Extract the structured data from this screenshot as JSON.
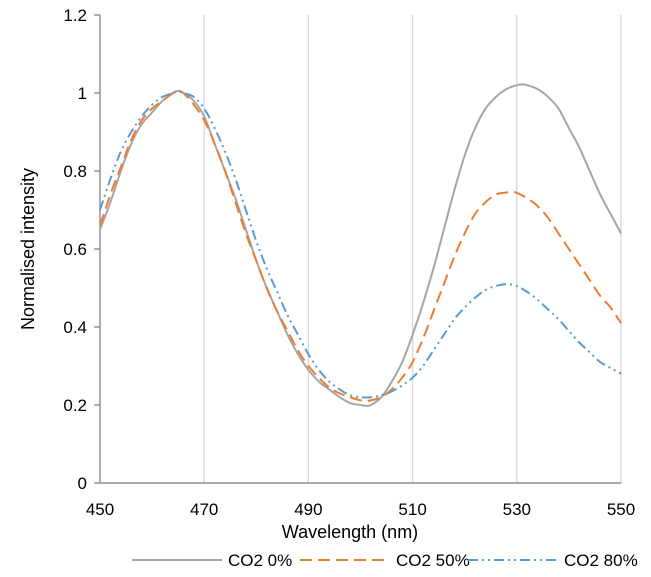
{
  "chart_data": {
    "type": "line",
    "title": "",
    "xlabel": "Wavelength (nm)",
    "ylabel": "Normalised intensity",
    "xlim": [
      450,
      550
    ],
    "ylim": [
      0,
      1.2
    ],
    "x_ticks": [
      "450",
      "470",
      "490",
      "510",
      "530",
      "550"
    ],
    "y_ticks": [
      "0",
      "0.2",
      "0.4",
      "0.6",
      "0.8",
      "1",
      "1.2"
    ],
    "grid": "vertical",
    "legend_position": "bottom",
    "series": [
      {
        "name": "CO2 0%",
        "color": "#a6a6a6",
        "dash": "solid",
        "x": [
          450,
          452,
          454,
          456,
          458,
          460,
          462,
          464,
          465,
          466,
          468,
          470,
          472,
          474,
          476,
          478,
          480,
          482,
          484,
          486,
          488,
          490,
          492,
          494,
          496,
          498,
          500,
          501,
          502,
          504,
          506,
          508,
          510,
          512,
          514,
          516,
          518,
          520,
          522,
          524,
          526,
          528,
          530,
          531,
          532,
          534,
          536,
          538,
          540,
          542,
          544,
          546,
          548,
          550
        ],
        "y": [
          0.65,
          0.72,
          0.8,
          0.87,
          0.92,
          0.95,
          0.98,
          1.0,
          1.005,
          1.0,
          0.98,
          0.94,
          0.87,
          0.8,
          0.73,
          0.65,
          0.57,
          0.5,
          0.44,
          0.38,
          0.33,
          0.29,
          0.26,
          0.24,
          0.22,
          0.205,
          0.2,
          0.198,
          0.2,
          0.22,
          0.26,
          0.31,
          0.38,
          0.46,
          0.55,
          0.65,
          0.75,
          0.84,
          0.91,
          0.96,
          0.99,
          1.01,
          1.02,
          1.022,
          1.02,
          1.01,
          0.99,
          0.96,
          0.91,
          0.86,
          0.8,
          0.74,
          0.69,
          0.64
        ]
      },
      {
        "name": "CO2 50%",
        "color": "#ed7d31",
        "dash": "long-dash",
        "x": [
          450,
          452,
          454,
          456,
          458,
          460,
          462,
          464,
          465,
          466,
          468,
          470,
          472,
          474,
          476,
          478,
          480,
          482,
          484,
          486,
          488,
          490,
          492,
          494,
          496,
          498,
          500,
          501,
          502,
          504,
          506,
          508,
          510,
          512,
          514,
          516,
          518,
          520,
          522,
          524,
          526,
          528,
          529,
          530,
          532,
          534,
          536,
          538,
          540,
          542,
          544,
          546,
          548,
          550
        ],
        "y": [
          0.66,
          0.74,
          0.81,
          0.88,
          0.93,
          0.96,
          0.98,
          1.0,
          1.005,
          1.0,
          0.97,
          0.93,
          0.87,
          0.8,
          0.72,
          0.64,
          0.57,
          0.5,
          0.44,
          0.39,
          0.34,
          0.3,
          0.27,
          0.245,
          0.23,
          0.22,
          0.212,
          0.21,
          0.212,
          0.22,
          0.24,
          0.27,
          0.31,
          0.37,
          0.44,
          0.51,
          0.58,
          0.64,
          0.69,
          0.72,
          0.74,
          0.745,
          0.746,
          0.744,
          0.73,
          0.71,
          0.68,
          0.64,
          0.6,
          0.56,
          0.52,
          0.48,
          0.45,
          0.41
        ]
      },
      {
        "name": "CO2 80%",
        "color": "#5b9bd5",
        "dash": "dash-dot-dot",
        "x": [
          450,
          452,
          454,
          456,
          458,
          460,
          462,
          464,
          465,
          466,
          468,
          470,
          472,
          474,
          476,
          478,
          480,
          482,
          484,
          486,
          488,
          490,
          492,
          494,
          496,
          498,
          500,
          502,
          504,
          506,
          508,
          510,
          512,
          514,
          516,
          518,
          520,
          522,
          524,
          526,
          528,
          530,
          532,
          534,
          536,
          538,
          540,
          542,
          544,
          546,
          548,
          550
        ],
        "y": [
          0.7,
          0.78,
          0.85,
          0.9,
          0.94,
          0.97,
          0.99,
          1.0,
          1.005,
          1.0,
          0.99,
          0.96,
          0.91,
          0.85,
          0.78,
          0.7,
          0.62,
          0.55,
          0.49,
          0.43,
          0.38,
          0.33,
          0.29,
          0.26,
          0.24,
          0.225,
          0.22,
          0.22,
          0.225,
          0.235,
          0.25,
          0.27,
          0.3,
          0.34,
          0.38,
          0.42,
          0.45,
          0.475,
          0.495,
          0.505,
          0.51,
          0.505,
          0.49,
          0.47,
          0.445,
          0.42,
          0.39,
          0.36,
          0.335,
          0.31,
          0.295,
          0.28
        ]
      }
    ]
  }
}
